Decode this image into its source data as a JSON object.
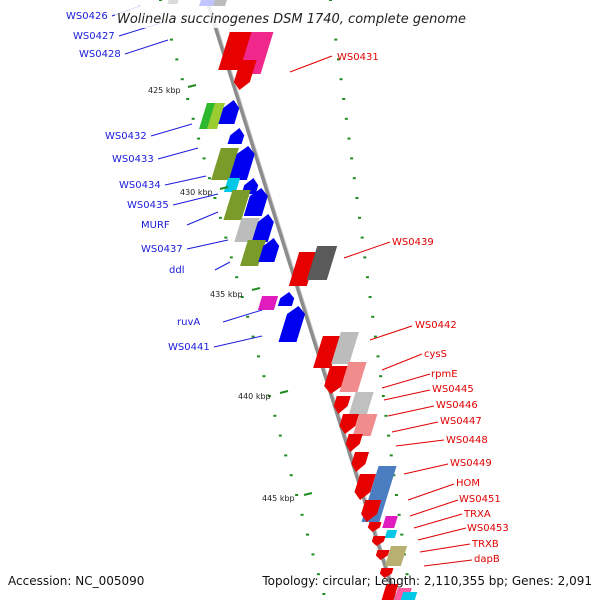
{
  "title": "Wolinella succinogenes DSM 1740, complete genome",
  "footer": {
    "accession": "Accession: NC_005090",
    "topology": "Topology: circular; Length: 2,110,355 bp; Genes: 2,091"
  },
  "colors": {
    "forward_label": "#1a1adc",
    "reverse_label": "#e00000",
    "backbone": "#8c8c8c",
    "tick": "#1e8c1e"
  },
  "ticks": [
    "425 kbp",
    "430 kbp",
    "435 kbp",
    "440 kbp",
    "445 kbp"
  ],
  "forward_labels": [
    "WS0426",
    "WS0427",
    "WS0428",
    "WS0432",
    "WS0433",
    "WS0434",
    "WS0435",
    "MURF",
    "WS0437",
    "ddl",
    "ruvA",
    "WS0441"
  ],
  "reverse_labels": [
    "WS0431",
    "WS0439",
    "WS0442",
    "cysS",
    "rpmE",
    "WS0445",
    "WS0446",
    "WS0447",
    "WS0448",
    "WS0449",
    "HOM",
    "WS0451",
    "TRXA",
    "WS0453",
    "TRXB",
    "dapB"
  ]
}
